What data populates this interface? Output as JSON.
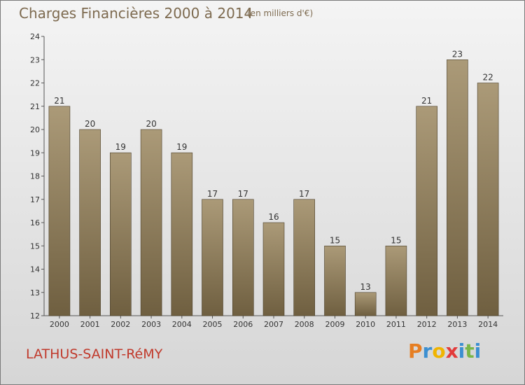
{
  "header": {
    "title": "Charges Financières 2000 à 2014",
    "unit": "(en milliers d'€)"
  },
  "footer": {
    "commune": "LATHUS-SAINT-RéMY",
    "logo": "Proxiti",
    "logo_letters": [
      "P",
      "r",
      "o",
      "x",
      "i",
      "t",
      "i"
    ],
    "logo_colors": [
      "#e67e22",
      "#3b8fd1",
      "#f0b400",
      "#e23b3b",
      "#3b8fd1",
      "#7ab648",
      "#3b8fd1"
    ]
  },
  "colors": {
    "bar_top": "#ab9a78",
    "bar_bottom": "#6f5f40",
    "accent_text": "#7d6a4f",
    "commune_text": "#c0392b"
  },
  "chart_data": {
    "type": "bar",
    "title": "Charges Financières 2000 à 2014",
    "categories": [
      "2000",
      "2001",
      "2002",
      "2003",
      "2004",
      "2005",
      "2006",
      "2007",
      "2008",
      "2009",
      "2010",
      "2011",
      "2012",
      "2013",
      "2014"
    ],
    "values": [
      21,
      20,
      19,
      20,
      19,
      17,
      17,
      16,
      17,
      15,
      13,
      15,
      21,
      23,
      22
    ],
    "ylim": [
      12,
      24
    ],
    "yticks": [
      12,
      13,
      14,
      15,
      16,
      17,
      18,
      19,
      20,
      21,
      22,
      23,
      24
    ],
    "grid": false,
    "xlabel": "",
    "ylabel": ""
  }
}
